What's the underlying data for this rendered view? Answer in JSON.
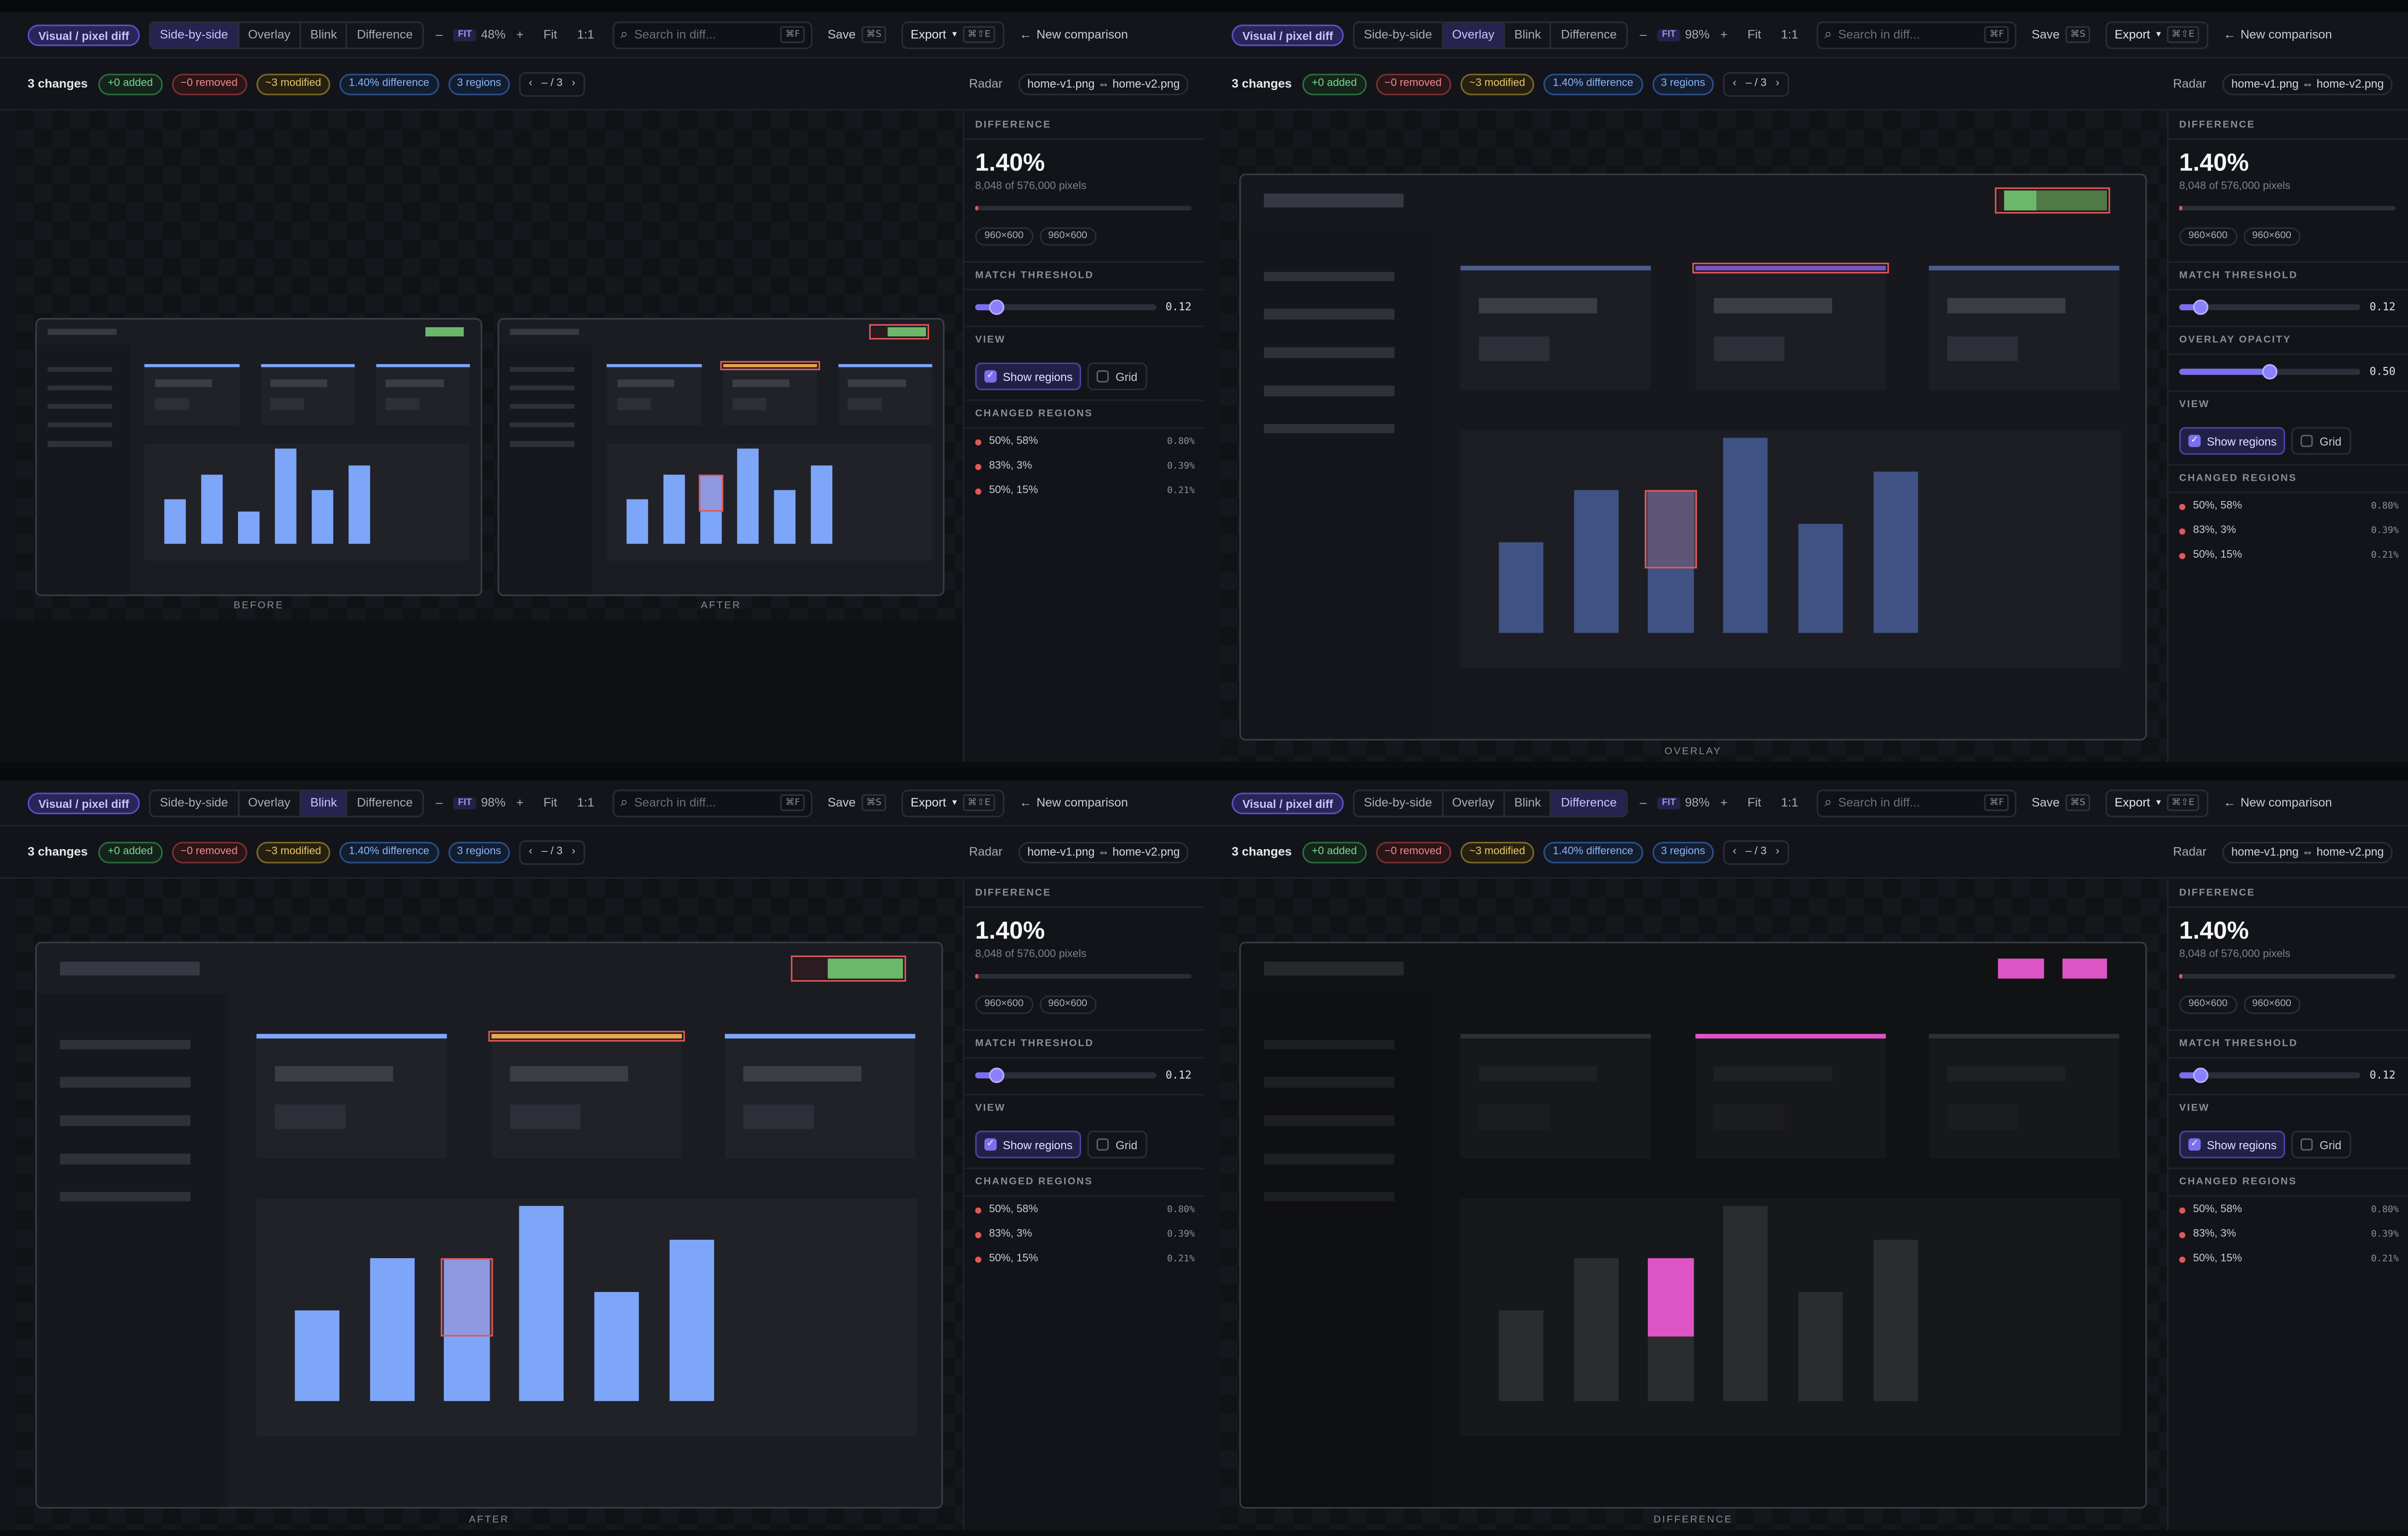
{
  "toolbar": {
    "mode_label": "Visual / pixel diff",
    "view_modes": [
      "Side-by-side",
      "Overlay",
      "Blink",
      "Difference"
    ],
    "zoom_minus": "–",
    "zoom_plus": "+",
    "fit_badge": "FIT",
    "fit_label": "Fit",
    "one_to_one": "1:1",
    "search_placeholder": "Search in diff...",
    "search_shortcut": "⌘F",
    "save_label": "Save",
    "save_shortcut": "⌘S",
    "export_label": "Export",
    "export_shortcut": "⌘⇧E",
    "new_comparison": "New comparison",
    "search_icon": "search-icon",
    "back_icon": "arrow-left-icon"
  },
  "status": {
    "changes": "3 changes",
    "added": "+0 added",
    "removed": "−0 removed",
    "modified": "~3 modified",
    "difference": "1.40% difference",
    "regions": "3 regions",
    "pager_prev": "‹",
    "pager_text": "– / 3",
    "pager_next": "›",
    "radar": "Radar",
    "files": "home-v1.png ⇔ home-v2.png"
  },
  "panel": {
    "difference_title": "DIFFERENCE",
    "difference_pct": "1.40%",
    "difference_sub": "8,048 of 576,000 pixels",
    "difference_fraction": 0.014,
    "dims_before": "960×600",
    "dims_after": "960×600",
    "threshold_title": "MATCH THRESHOLD",
    "threshold_value": "0.12",
    "threshold_fraction": 0.12,
    "opacity_title": "OVERLAY OPACITY",
    "opacity_value": "0.50",
    "opacity_fraction": 0.5,
    "view_title": "VIEW",
    "show_regions": "Show regions",
    "show_regions_checked": true,
    "grid": "Grid",
    "grid_checked": false,
    "changed_title": "CHANGED REGIONS",
    "regions": [
      {
        "pos": "50%, 58%",
        "pct": "0.80%"
      },
      {
        "pos": "83%, 3%",
        "pct": "0.39%"
      },
      {
        "pos": "50%, 15%",
        "pct": "0.21%"
      }
    ]
  },
  "panes": [
    {
      "active_mode": "Side-by-side",
      "zoom": "48%",
      "captions": [
        "BEFORE",
        "AFTER"
      ]
    },
    {
      "active_mode": "Overlay",
      "zoom": "98%",
      "captions": [
        "OVERLAY"
      ]
    },
    {
      "active_mode": "Blink",
      "zoom": "98%",
      "captions": [
        "AFTER"
      ]
    },
    {
      "active_mode": "Difference",
      "zoom": "98%",
      "captions": [
        "DIFFERENCE"
      ]
    }
  ],
  "colors": {
    "accent": "#7b6ff0",
    "chart_blue": "#7ea6f8",
    "region_red": "#e25858",
    "added_green": "#7cd491",
    "modified_yellow": "#e8c76a",
    "diff_magenta": "#dd55c4"
  }
}
